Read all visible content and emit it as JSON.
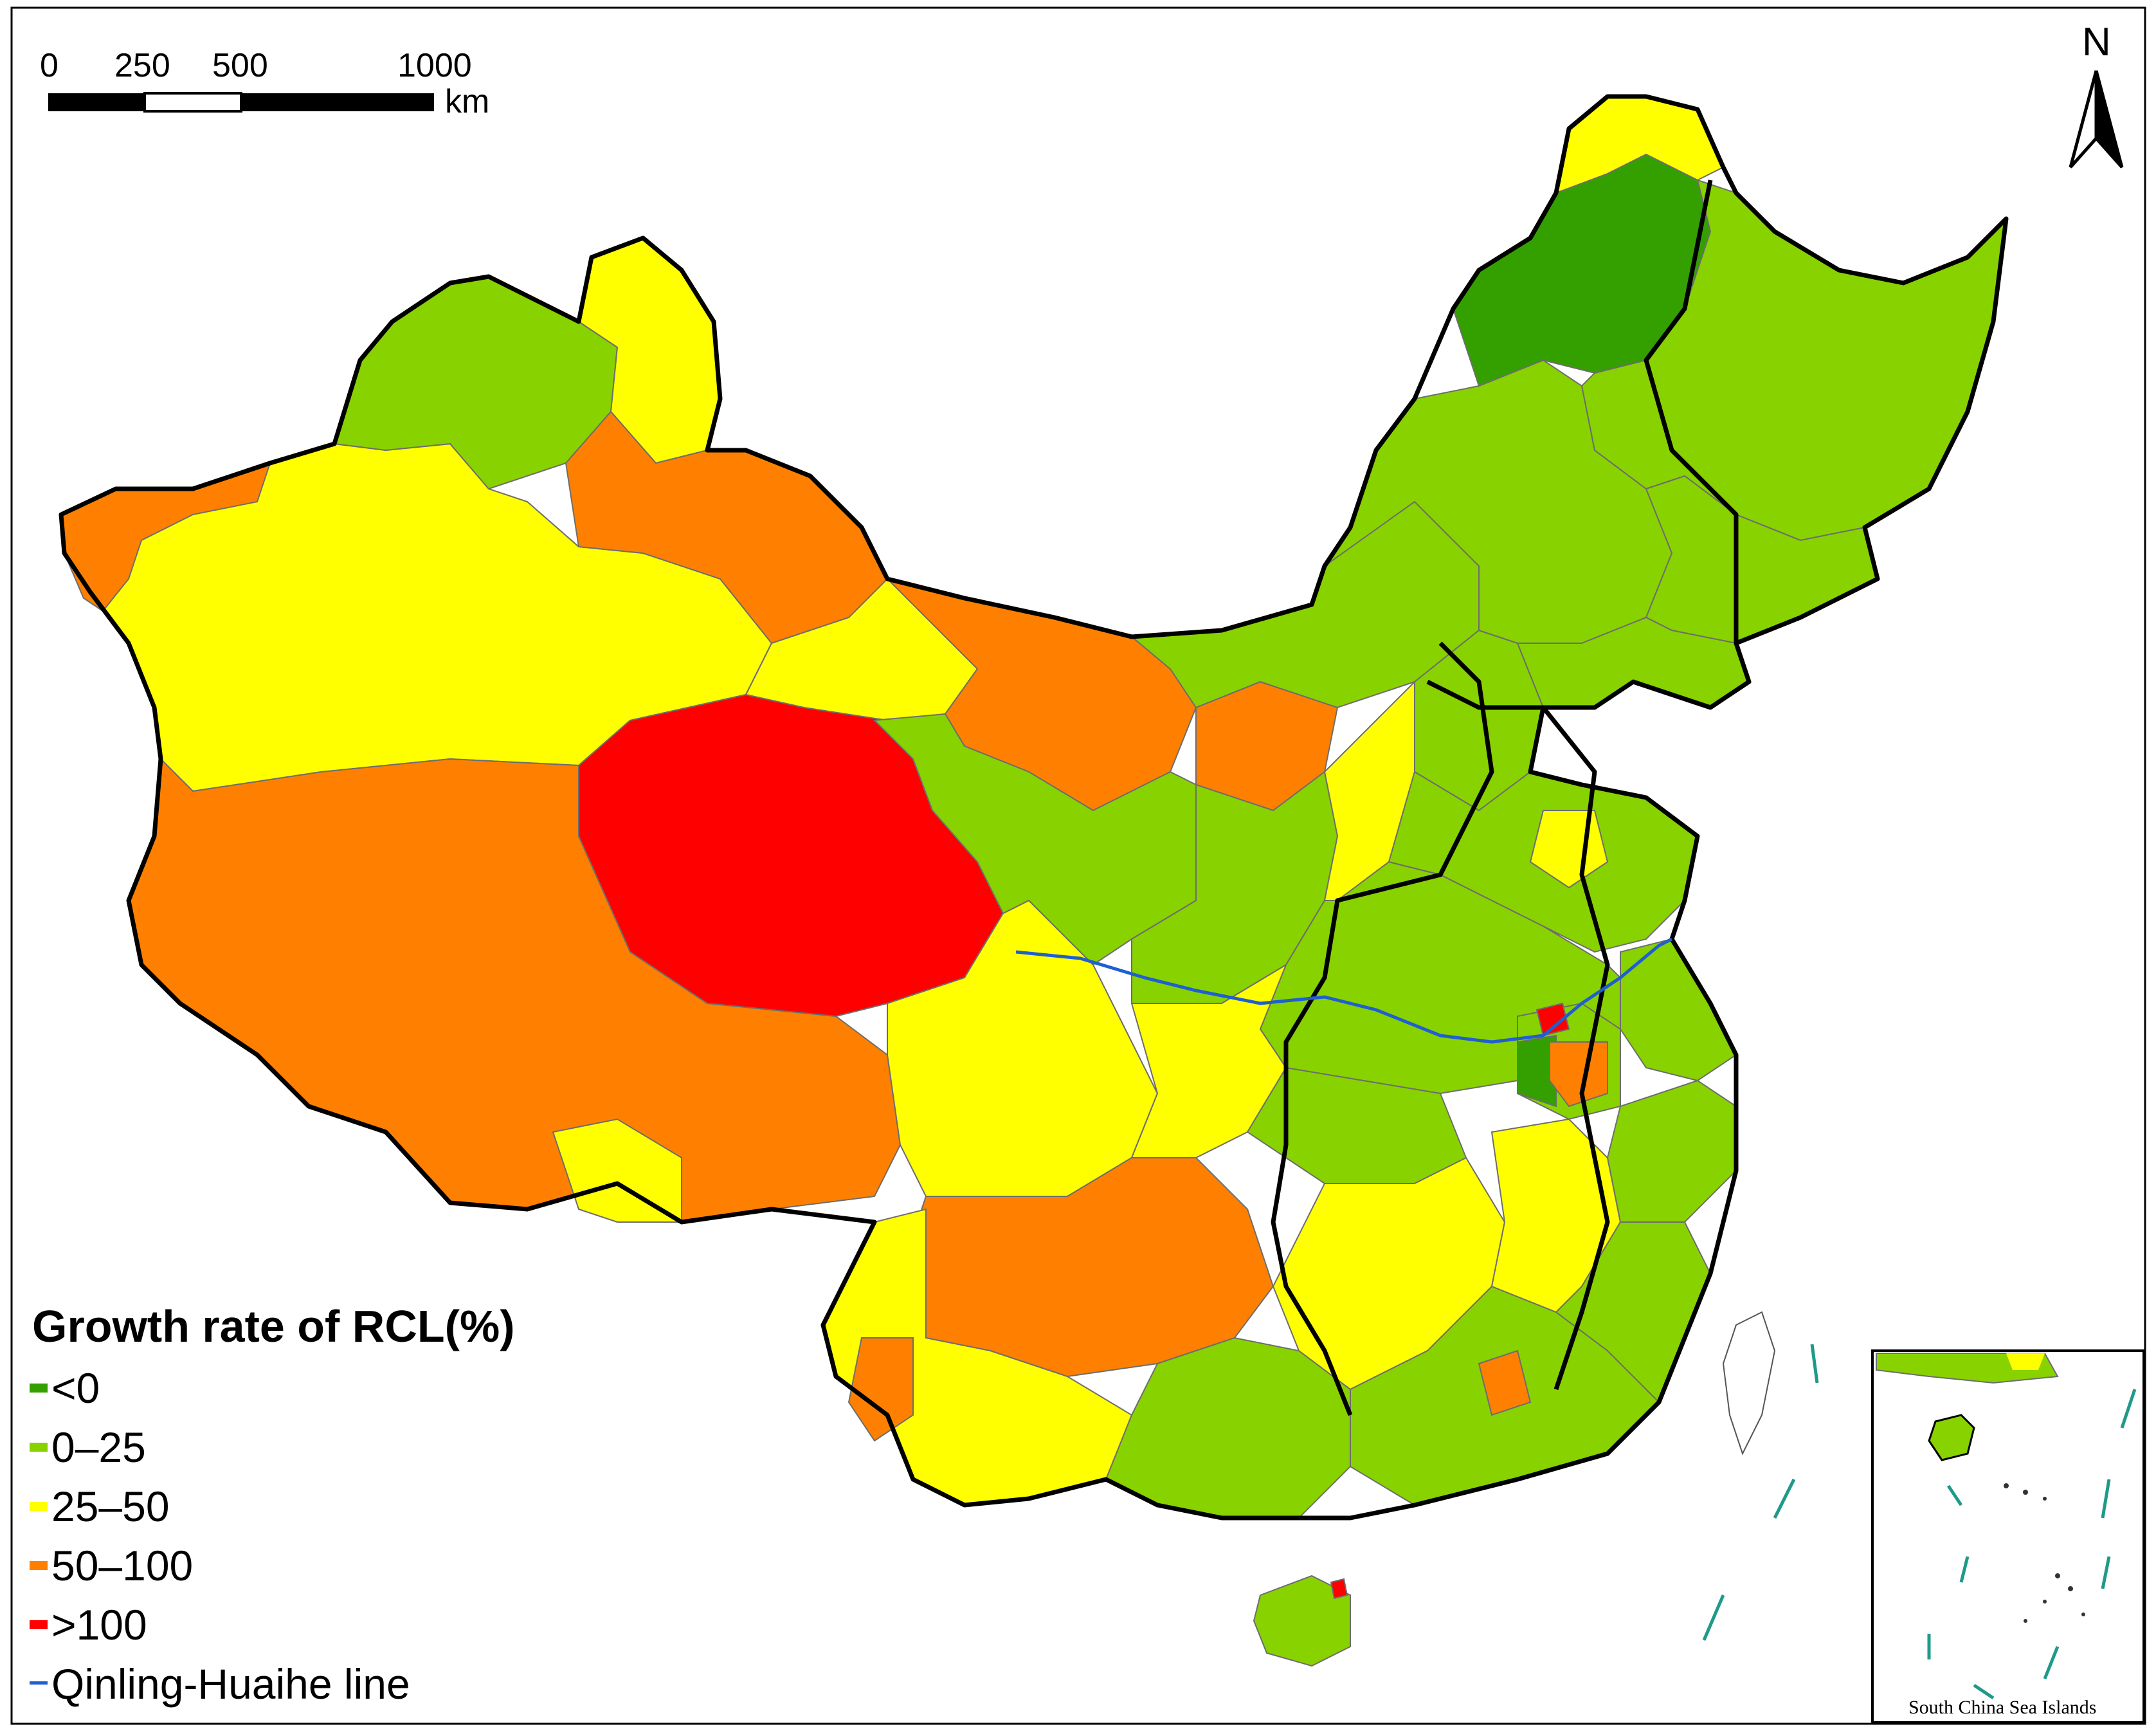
{
  "scale_bar": {
    "ticks": [
      "0",
      "250",
      "500",
      "1000"
    ],
    "unit": "km"
  },
  "north_arrow": {
    "label": "N"
  },
  "legend": {
    "title": "Growth rate of RCL(%)",
    "items": [
      {
        "label": "<0",
        "color": "#33a000"
      },
      {
        "label": "0–25",
        "color": "#88d200"
      },
      {
        "label": "25–50",
        "color": "#ffff00"
      },
      {
        "label": "50–100",
        "color": "#ff8000"
      },
      {
        "label": ">100",
        "color": "#ff0000"
      },
      {
        "label": "Qinling-Huaihe line",
        "color": "#1f5fd0"
      }
    ]
  },
  "inset": {
    "label": "South China Sea Islands"
  },
  "colors": {
    "province_border": "#000000",
    "county_border": "#6d6d6d",
    "sea_islands": "#1f9a8a"
  }
}
